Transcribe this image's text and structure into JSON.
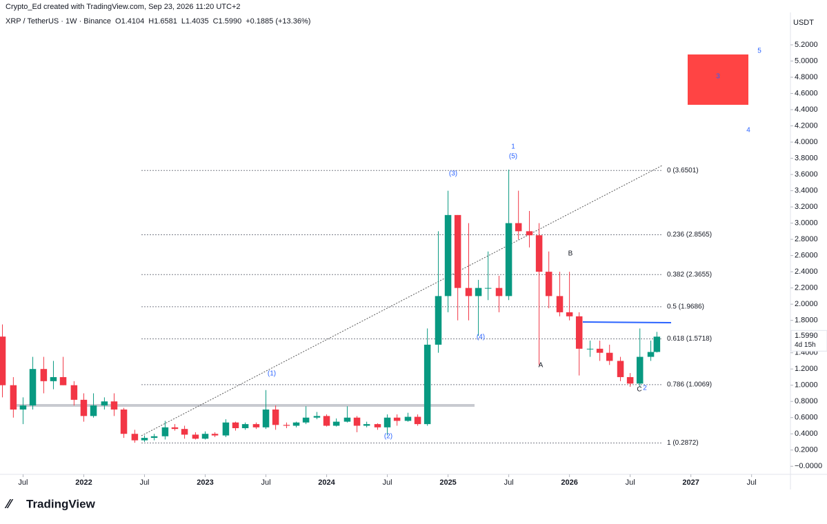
{
  "header": {
    "credit": "Crypto_Ed created with TradingView.com, Sep 23, 2026 11:20 UTC+2",
    "legend": [
      "XRP / TetherUS · 1W · Binance",
      "O1.4104",
      "H1.6581",
      "L1.4035",
      "C1.5990",
      "+0.1885 (+13.36%)"
    ]
  },
  "chart_data": {
    "type": "candlestick",
    "unit": "USDT",
    "x": [
      2021.33,
      2021.42,
      2021.5,
      2021.58,
      2021.67,
      2021.75,
      2021.83,
      2021.92,
      2022.0,
      2022.08,
      2022.17,
      2022.25,
      2022.33,
      2022.42,
      2022.5,
      2022.58,
      2022.67,
      2022.75,
      2022.83,
      2022.92,
      2023.0,
      2023.08,
      2023.17,
      2023.25,
      2023.33,
      2023.42,
      2023.5,
      2023.58,
      2023.67,
      2023.75,
      2023.83,
      2023.92,
      2024.0,
      2024.08,
      2024.17,
      2024.25,
      2024.33,
      2024.42,
      2024.5,
      2024.58,
      2024.67,
      2024.75,
      2024.83,
      2024.92,
      2025.0,
      2025.08,
      2025.17,
      2025.25,
      2025.33,
      2025.42,
      2025.5,
      2025.58,
      2025.67,
      2025.75,
      2025.83,
      2025.92,
      2026.0,
      2026.08,
      2026.17,
      2026.25,
      2026.33,
      2026.42,
      2026.5,
      2026.58,
      2026.67,
      2026.72
    ],
    "open": [
      1.6,
      1.0,
      0.7,
      0.75,
      1.2,
      1.05,
      1.1,
      1.0,
      0.82,
      0.62,
      0.75,
      0.8,
      0.7,
      0.4,
      0.32,
      0.35,
      0.37,
      0.48,
      0.46,
      0.39,
      0.34,
      0.4,
      0.38,
      0.54,
      0.47,
      0.52,
      0.48,
      0.7,
      0.51,
      0.5,
      0.54,
      0.6,
      0.62,
      0.5,
      0.55,
      0.6,
      0.5,
      0.52,
      0.48,
      0.6,
      0.56,
      0.61,
      0.52,
      1.5,
      2.1,
      3.1,
      2.2,
      2.1,
      2.2,
      2.2,
      2.1,
      3.0,
      2.9,
      2.85,
      2.4,
      2.1,
      1.9,
      1.85,
      1.45,
      1.45,
      1.4,
      1.3,
      1.1,
      1.02,
      1.35,
      1.4104
    ],
    "high": [
      1.75,
      1.1,
      0.85,
      1.35,
      1.35,
      1.3,
      1.35,
      1.05,
      0.9,
      0.9,
      0.85,
      0.9,
      0.72,
      0.45,
      0.38,
      0.4,
      0.56,
      0.52,
      0.5,
      0.42,
      0.43,
      0.42,
      0.58,
      0.55,
      0.54,
      0.54,
      0.94,
      0.75,
      0.54,
      0.55,
      0.74,
      0.67,
      0.64,
      0.59,
      0.74,
      0.62,
      0.55,
      0.53,
      0.64,
      0.64,
      0.66,
      0.64,
      1.7,
      2.9,
      3.4,
      3.1,
      3.0,
      2.3,
      2.65,
      2.35,
      3.66,
      3.4,
      3.15,
      3.0,
      2.65,
      2.4,
      2.4,
      1.9,
      1.55,
      1.55,
      1.5,
      1.35,
      1.15,
      1.7,
      1.55,
      1.6581
    ],
    "low": [
      0.85,
      0.6,
      0.52,
      0.7,
      0.9,
      0.95,
      1.0,
      0.75,
      0.55,
      0.6,
      0.7,
      0.62,
      0.35,
      0.29,
      0.3,
      0.32,
      0.33,
      0.44,
      0.34,
      0.33,
      0.33,
      0.36,
      0.36,
      0.44,
      0.45,
      0.46,
      0.46,
      0.45,
      0.47,
      0.48,
      0.52,
      0.58,
      0.49,
      0.49,
      0.54,
      0.42,
      0.48,
      0.45,
      0.38,
      0.5,
      0.55,
      0.5,
      0.5,
      1.4,
      1.9,
      1.8,
      1.8,
      1.61,
      2.05,
      1.9,
      2.05,
      2.8,
      2.7,
      1.25,
      1.95,
      1.85,
      1.8,
      1.12,
      1.35,
      1.3,
      1.25,
      1.05,
      0.98,
      0.98,
      1.3,
      1.4035
    ],
    "close": [
      1.0,
      0.7,
      0.75,
      1.2,
      1.05,
      1.1,
      1.0,
      0.82,
      0.62,
      0.75,
      0.8,
      0.7,
      0.4,
      0.32,
      0.35,
      0.37,
      0.48,
      0.46,
      0.39,
      0.34,
      0.4,
      0.38,
      0.54,
      0.47,
      0.52,
      0.48,
      0.7,
      0.51,
      0.5,
      0.54,
      0.6,
      0.62,
      0.5,
      0.55,
      0.6,
      0.5,
      0.52,
      0.48,
      0.6,
      0.56,
      0.61,
      0.52,
      1.5,
      2.1,
      3.1,
      2.2,
      2.1,
      2.2,
      2.2,
      2.1,
      3.0,
      2.9,
      2.85,
      2.4,
      2.1,
      1.9,
      1.85,
      1.45,
      1.45,
      1.4,
      1.3,
      1.1,
      1.02,
      1.35,
      1.41,
      1.599
    ],
    "up_color": "#089981",
    "down_color": "#f23645",
    "xlim": [
      2021.31,
      2027.82
    ],
    "xticks": [
      {
        "value": 2021.5,
        "label": "Jul"
      },
      2022,
      {
        "value": 2022.5,
        "label": "Jul"
      },
      2023,
      {
        "value": 2023.5,
        "label": "Jul"
      },
      2024,
      {
        "value": 2024.5,
        "label": "Jul"
      },
      2025,
      {
        "value": 2025.5,
        "label": "Jul"
      },
      2026,
      {
        "value": 2026.5,
        "label": "Jul"
      },
      2027,
      {
        "value": 2027.5,
        "label": "Jul"
      }
    ],
    "ylim": [
      -0.1,
      5.6
    ],
    "yticks": [
      {
        "value": 0,
        "label": "−0.0000"
      },
      {
        "value": 0.2,
        "label": "0.2000"
      },
      {
        "value": 0.4,
        "label": "0.4000"
      },
      {
        "value": 0.6,
        "label": "0.6000"
      },
      {
        "value": 0.8,
        "label": "0.8000"
      },
      {
        "value": 1,
        "label": "1.0000"
      },
      {
        "value": 1.2,
        "label": "1.2000"
      },
      {
        "value": 1.4,
        "label": "1.4000"
      },
      {
        "value": 1.8,
        "label": "1.8000"
      },
      {
        "value": 2,
        "label": "2.0000"
      },
      {
        "value": 2.2,
        "label": "2.2000"
      },
      {
        "value": 2.4,
        "label": "2.4000"
      },
      {
        "value": 2.6,
        "label": "2.6000"
      },
      {
        "value": 2.8,
        "label": "2.8000"
      },
      {
        "value": 3,
        "label": "3.0000"
      },
      {
        "value": 3.2,
        "label": "3.2000"
      },
      {
        "value": 3.4,
        "label": "3.4000"
      },
      {
        "value": 3.6,
        "label": "3.6000"
      },
      {
        "value": 3.8,
        "label": "3.8000"
      },
      {
        "value": 4,
        "label": "4.0000"
      },
      {
        "value": 4.2,
        "label": "4.2000"
      },
      {
        "value": 4.4,
        "label": "4.4000"
      },
      {
        "value": 4.6,
        "label": "4.6000"
      },
      {
        "value": 4.8,
        "label": "4.8000"
      },
      {
        "value": 5,
        "label": "5.0000"
      },
      {
        "value": 5.2,
        "label": "5.2000"
      }
    ],
    "price_tag": {
      "value": 1.599,
      "label": "1.5990",
      "countdown": "4d 15h"
    },
    "fib_levels": [
      {
        "value": 3.6501,
        "label": "0 (3.6501)"
      },
      {
        "value": 2.8565,
        "label": "0.236 (2.8565)"
      },
      {
        "value": 2.3655,
        "label": "0.382 (2.3655)"
      },
      {
        "value": 1.9686,
        "label": "0.5 (1.9686)"
      },
      {
        "value": 1.5718,
        "label": "0.618 (1.5718)"
      },
      {
        "value": 1.0069,
        "label": "0.786 (1.0069)"
      },
      {
        "value": 0.2872,
        "label": "1 (0.2872)"
      }
    ],
    "annotations": [
      "(1)",
      "(2)",
      "(3)",
      "(4)",
      "(5)",
      "1",
      "2",
      "3",
      "4",
      "5",
      "A",
      "B",
      "C"
    ]
  },
  "footer": {
    "logo": "TradingView"
  }
}
